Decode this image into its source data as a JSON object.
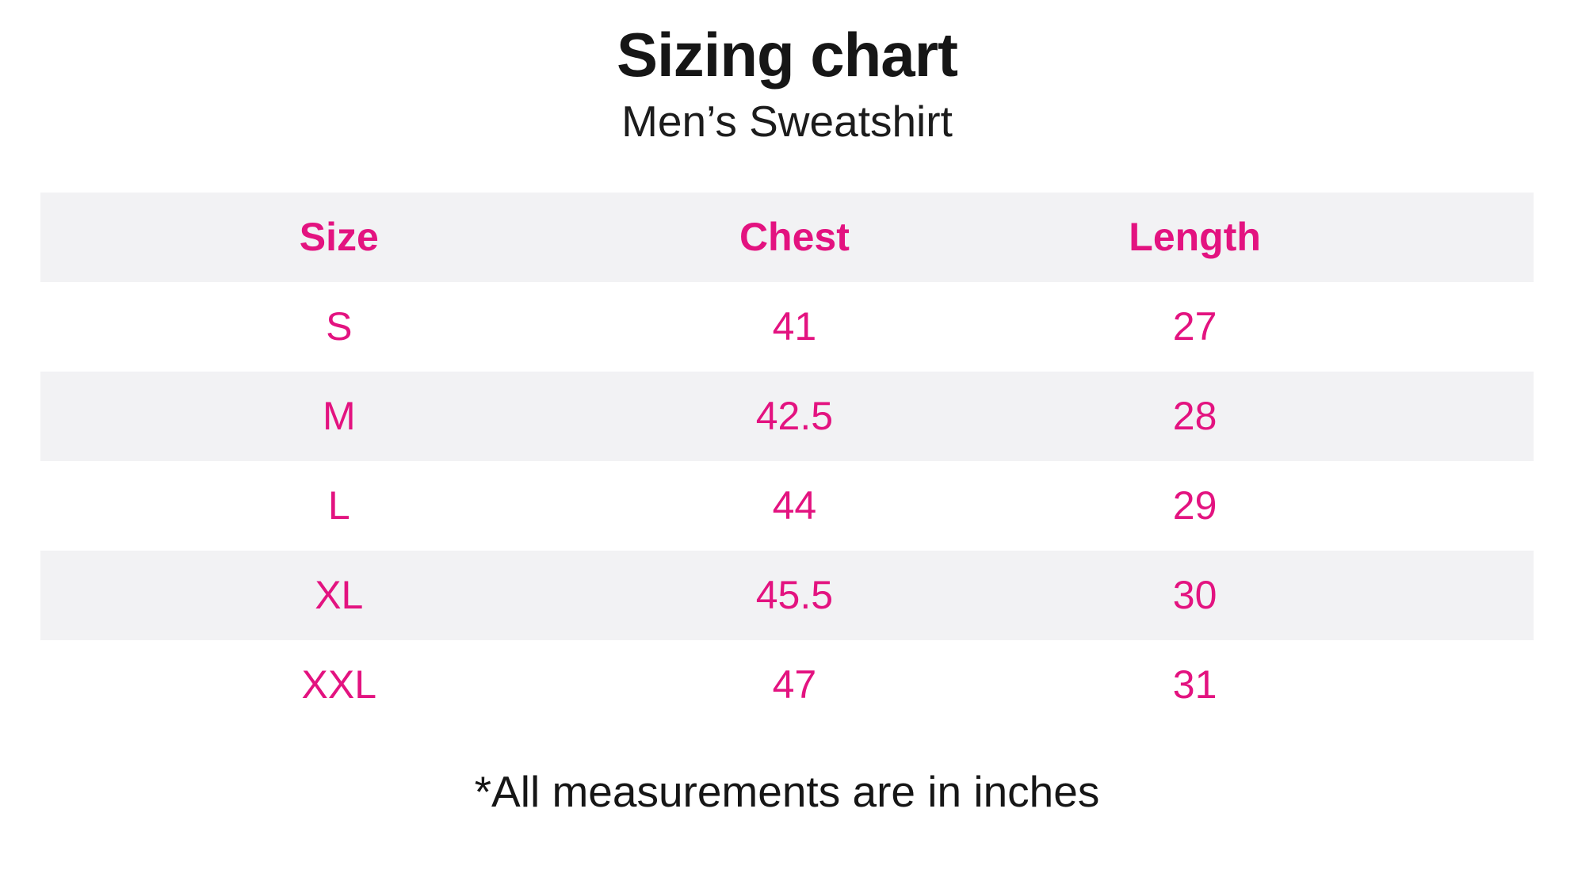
{
  "colors": {
    "accent_pink": "#e31380",
    "row_stripe_gray": "#f2f2f4",
    "text_black": "#161616",
    "background": "#ffffff"
  },
  "header": {
    "title": "Sizing chart",
    "subtitle": "Men’s Sweatshirt"
  },
  "table": {
    "columns": [
      "Size",
      "Chest",
      "Length"
    ],
    "rows": [
      {
        "size": "S",
        "chest": "41",
        "length": "27"
      },
      {
        "size": "M",
        "chest": "42.5",
        "length": "28"
      },
      {
        "size": "L",
        "chest": "44",
        "length": "29"
      },
      {
        "size": "XL",
        "chest": "45.5",
        "length": "30"
      },
      {
        "size": "XXL",
        "chest": "47",
        "length": "31"
      }
    ]
  },
  "footnote": "*All measurements are in inches",
  "chart_data": {
    "type": "table",
    "title": "Sizing chart",
    "subtitle": "Men’s Sweatshirt",
    "columns": [
      "Size",
      "Chest",
      "Length"
    ],
    "rows": [
      [
        "S",
        41,
        27
      ],
      [
        "M",
        42.5,
        28
      ],
      [
        "L",
        44,
        29
      ],
      [
        "XL",
        45.5,
        30
      ],
      [
        "XXL",
        47,
        31
      ]
    ],
    "units": "inches",
    "note": "*All measurements are in inches",
    "layout": {
      "striped_rows": true,
      "header_background": "#f2f2f4",
      "text_color": "#e31380"
    }
  }
}
